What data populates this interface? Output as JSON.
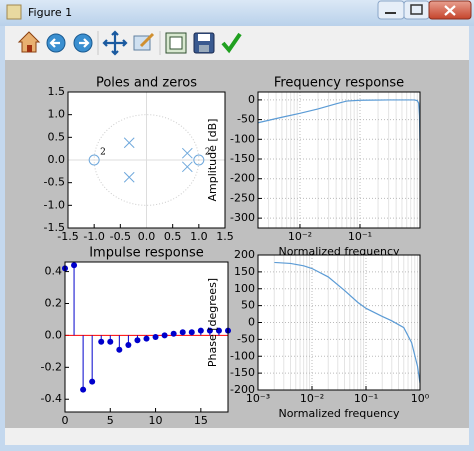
{
  "window": {
    "title": "Figure 1"
  },
  "chart_data": [
    {
      "type": "pole-zero",
      "title": "Poles and zeros",
      "xlim": [
        -1.5,
        1.5
      ],
      "ylim": [
        -1.5,
        1.5
      ],
      "xticks": [
        -1.5,
        {
          "value": -1,
          "label": "-1.0"
        },
        -0.5,
        {
          "value": 0,
          "label": "0.0"
        },
        0.5,
        {
          "value": 1,
          "label": "1.0"
        },
        1.5
      ],
      "yticks": [
        -1.5,
        {
          "value": -1,
          "label": "-1.0"
        },
        -0.5,
        {
          "value": 0,
          "label": "0.0"
        },
        0.5,
        {
          "value": 1,
          "label": "1.0"
        },
        1.5
      ],
      "zeros": {
        "x": [
          -1,
          1
        ],
        "y": [
          0,
          0
        ]
      },
      "poles": {
        "x": [
          -0.33,
          -0.33,
          0.78,
          0.78
        ],
        "y": [
          0.38,
          -0.38,
          0.15,
          -0.15
        ]
      },
      "annotations": [
        "2",
        "2"
      ],
      "color": "#6fa8dc",
      "grid": false
    },
    {
      "type": "line",
      "title": "Frequency response",
      "ylabel": "Amplitude [dB]",
      "xlabel": "Normalized frequency",
      "xscale": "log",
      "xlim": [
        0.002,
        1
      ],
      "ylim": [
        -325,
        20
      ],
      "xticks": [
        {
          "value": 0.01,
          "label": "10⁻²"
        },
        {
          "value": 0.1,
          "label": "10⁻¹"
        }
      ],
      "yticks": [
        0,
        -50,
        -100,
        -150,
        -200,
        -250,
        -300
      ],
      "x": [
        0.002,
        0.005,
        0.01,
        0.02,
        0.04,
        0.06,
        0.1,
        0.3,
        0.6,
        0.8,
        0.9,
        0.95,
        0.98,
        1
      ],
      "values": [
        -58,
        -44,
        -34,
        -23,
        -10,
        -3,
        -1,
        0,
        0,
        0,
        -2,
        -8,
        -40,
        -130
      ],
      "color": "#5b9bd5",
      "grid": true
    },
    {
      "type": "stem",
      "title": "Impulse response",
      "xlim": [
        0,
        18
      ],
      "ylim": [
        -0.48,
        0.46
      ],
      "xticks": [
        0,
        5,
        10,
        15
      ],
      "yticks": [
        0.4,
        0.2,
        {
          "value": 0,
          "label": "0.0"
        },
        -0.2,
        -0.4
      ],
      "x": [
        0,
        1,
        2,
        3,
        4,
        5,
        6,
        7,
        8,
        9,
        10,
        11,
        12,
        13,
        14,
        15,
        16,
        17,
        18
      ],
      "values": [
        0.42,
        0.44,
        -0.34,
        -0.29,
        -0.04,
        -0.04,
        -0.09,
        -0.06,
        -0.03,
        -0.02,
        -0.01,
        0.0,
        0.01,
        0.02,
        0.02,
        0.03,
        0.03,
        0.03,
        0.03
      ],
      "color": "#0000cc",
      "baseline_color": "#ff0000",
      "grid": false
    },
    {
      "type": "line",
      "ylabel": "Phase [degrees]",
      "xlabel": "Normalized frequency",
      "xscale": "log",
      "xlim": [
        0.001,
        1
      ],
      "ylim": [
        -200,
        200
      ],
      "xticks": [
        {
          "value": 0.001,
          "label": "10⁻³"
        },
        {
          "value": 0.01,
          "label": "10⁻²"
        },
        {
          "value": 0.1,
          "label": "10⁻¹"
        },
        {
          "value": 1,
          "label": "10⁰"
        }
      ],
      "yticks": [
        200,
        150,
        100,
        50,
        0,
        -50,
        -100,
        -150,
        -200
      ],
      "x": [
        0.002,
        0.004,
        0.007,
        0.01,
        0.02,
        0.04,
        0.07,
        0.1,
        0.2,
        0.3,
        0.5,
        0.7,
        0.9,
        1
      ],
      "values": [
        178,
        175,
        168,
        160,
        135,
        95,
        60,
        42,
        18,
        5,
        -15,
        -60,
        -130,
        -180
      ],
      "color": "#5b9bd5",
      "grid": true
    }
  ]
}
